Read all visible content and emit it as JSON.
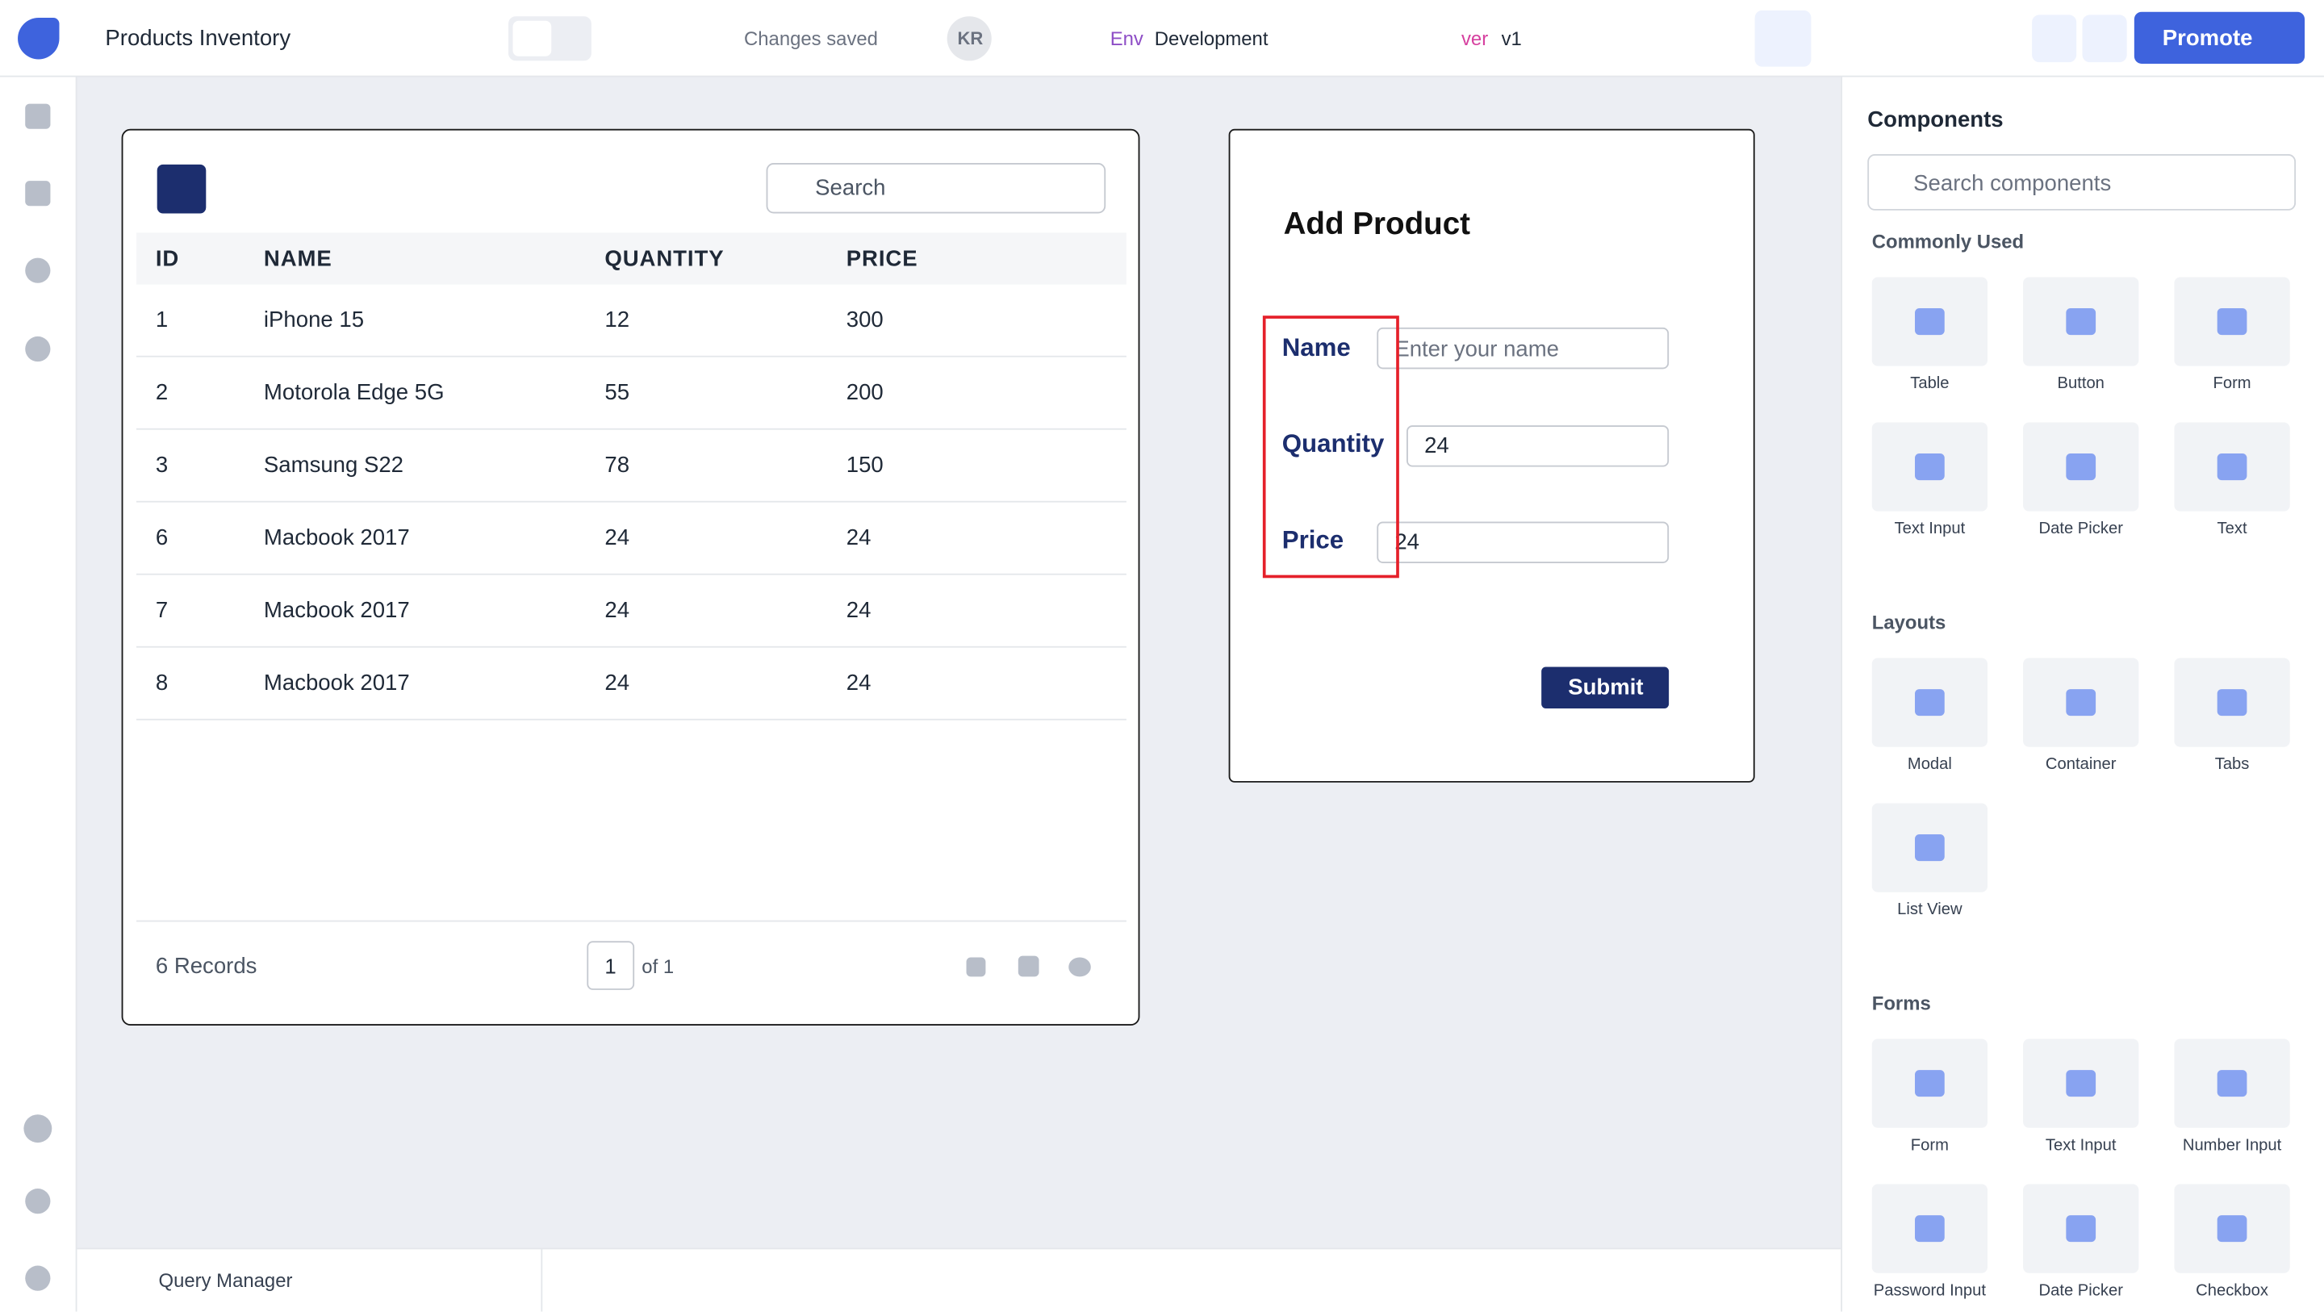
{
  "header": {
    "app_name": "Products Inventory",
    "status": "Changes saved",
    "avatar": "KR",
    "env_label": "Env",
    "env_value": "Development",
    "version_label": "ver",
    "version_value": "v1",
    "promote": "Promote"
  },
  "table": {
    "search_placeholder": "Search",
    "columns": [
      "ID",
      "NAME",
      "QUANTITY",
      "PRICE"
    ],
    "rows": [
      [
        "1",
        "iPhone 15",
        "12",
        "300"
      ],
      [
        "2",
        "Motorola Edge 5G",
        "55",
        "200"
      ],
      [
        "3",
        "Samsung S22",
        "78",
        "150"
      ],
      [
        "6",
        "Macbook 2017",
        "24",
        "24"
      ],
      [
        "7",
        "Macbook 2017",
        "24",
        "24"
      ],
      [
        "8",
        "Macbook 2017",
        "24",
        "24"
      ]
    ],
    "records": "6 Records",
    "page": "1",
    "page_of": "of 1"
  },
  "form": {
    "title": "Add Product",
    "fields": [
      {
        "label": "Name",
        "placeholder": "Enter your name"
      },
      {
        "label": "Quantity",
        "value": "24"
      },
      {
        "label": "Price",
        "value": "24"
      }
    ],
    "submit": "Submit"
  },
  "components": {
    "title": "Components",
    "search_placeholder": "Search components",
    "sections": [
      {
        "title": "Commonly Used",
        "items": [
          "Table",
          "Button",
          "Form",
          "Text Input",
          "Date Picker",
          "Text"
        ]
      },
      {
        "title": "Layouts",
        "items": [
          "Modal",
          "Container",
          "Tabs",
          "List View"
        ]
      },
      {
        "title": "Forms",
        "items": [
          "Form",
          "Text Input",
          "Number Input",
          "Password Input",
          "Date Picker",
          "Checkbox"
        ]
      }
    ]
  },
  "footer": {
    "query_manager": "Query Manager"
  }
}
